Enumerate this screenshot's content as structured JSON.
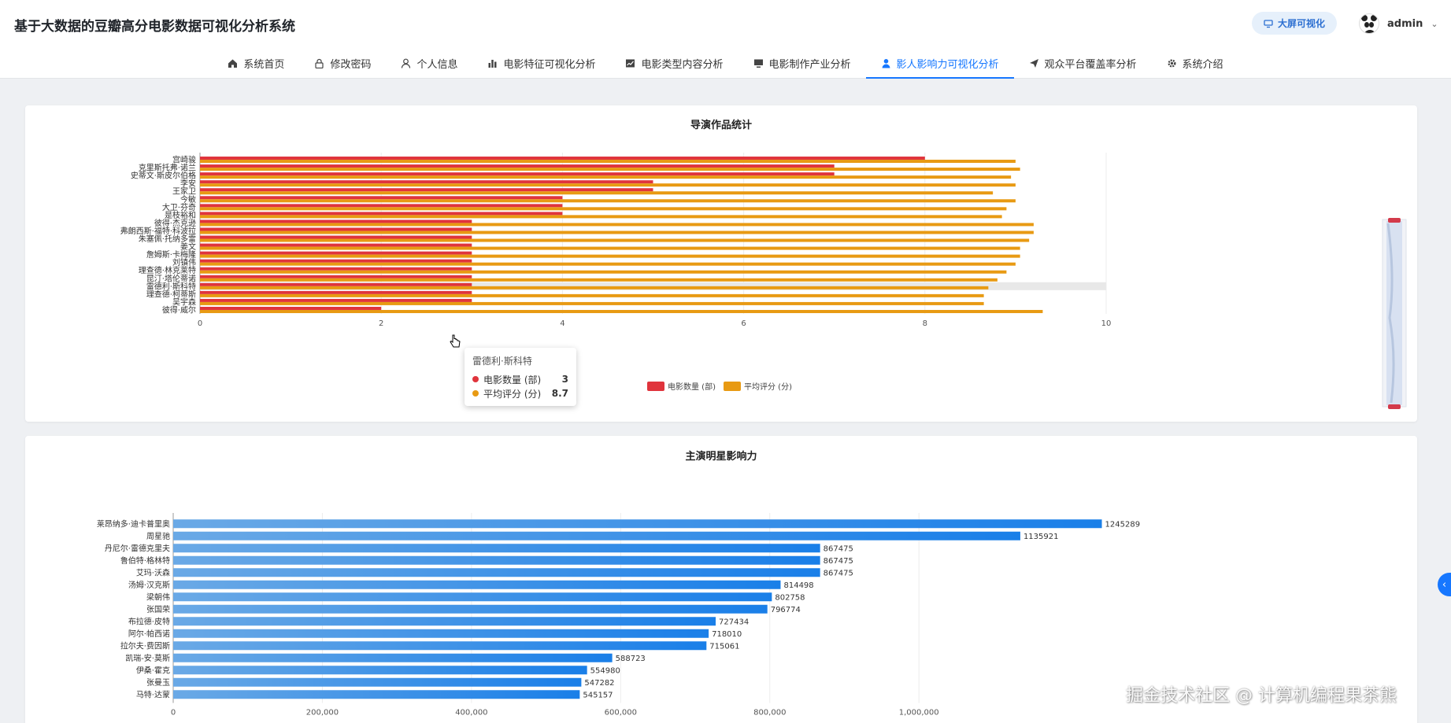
{
  "header": {
    "title": "基于大数据的豆瓣高分电影数据可视化分析系统",
    "bigscreen_label": "大屏可视化",
    "username": "admin"
  },
  "nav": {
    "items": [
      {
        "label": "系统首页",
        "icon": "home-icon"
      },
      {
        "label": "修改密码",
        "icon": "lock-icon"
      },
      {
        "label": "个人信息",
        "icon": "user-icon"
      },
      {
        "label": "电影特征可视化分析",
        "icon": "bar-chart-icon"
      },
      {
        "label": "电影类型内容分析",
        "icon": "line-chart-icon"
      },
      {
        "label": "电影制作产业分析",
        "icon": "monitor-icon"
      },
      {
        "label": "影人影响力可视化分析",
        "icon": "person-icon",
        "active": true
      },
      {
        "label": "观众平台覆盖率分析",
        "icon": "send-icon"
      },
      {
        "label": "系统介绍",
        "icon": "gear-icon"
      }
    ]
  },
  "colors": {
    "accent": "#1677ff",
    "director_count": "#e0343c",
    "director_rating": "#e89a13",
    "star_bar": "#1e88e5"
  },
  "chart_data": [
    {
      "type": "bar",
      "orientation": "horizontal",
      "title": "导演作品统计",
      "categories": [
        "宫崎骏",
        "克里斯托弗·诺兰",
        "史蒂文·斯皮尔伯格",
        "李安",
        "王家卫",
        "今敏",
        "大卫·芬奇",
        "是枝裕和",
        "彼得·杰克逊",
        "弗朗西斯·福特·科波拉",
        "朱塞佩·托纳多雷",
        "姜文",
        "詹姆斯·卡梅隆",
        "刘镇伟",
        "理查德·林克莱特",
        "昆汀·塔伦蒂诺",
        "雷德利·斯科特",
        "理查德·柯蒂斯",
        "吴宇森",
        "彼得·威尔"
      ],
      "series": [
        {
          "name": "电影数量 (部)",
          "values": [
            8,
            7,
            7,
            5,
            5,
            4,
            4,
            4,
            3,
            3,
            3,
            3,
            3,
            3,
            3,
            3,
            3,
            3,
            3,
            2
          ]
        },
        {
          "name": "平均评分 (分)",
          "values": [
            9.0,
            9.05,
            8.95,
            9.0,
            8.75,
            9.0,
            8.9,
            8.85,
            9.2,
            9.2,
            9.15,
            9.05,
            9.05,
            9.0,
            8.9,
            8.8,
            8.7,
            8.65,
            8.65,
            9.3
          ]
        }
      ],
      "x_ticks": [
        "0",
        "2",
        "4",
        "6",
        "8",
        "10"
      ],
      "xlim": [
        0,
        10
      ],
      "legend_position": "bottom-center",
      "highlight_category": "雷德利·斯科特",
      "tooltip": {
        "title": "雷德利·斯科特",
        "rows": [
          {
            "name": "电影数量 (部)",
            "value": "3"
          },
          {
            "name": "平均评分 (分)",
            "value": "8.7"
          }
        ]
      },
      "has_datazoom": true
    },
    {
      "type": "bar",
      "orientation": "horizontal",
      "title": "主演明星影响力",
      "categories": [
        "莱昂纳多·迪卡普里奥",
        "周星驰",
        "丹尼尔·雷德克里夫",
        "鲁伯特·格林特",
        "艾玛·沃森",
        "汤姆·汉克斯",
        "梁朝伟",
        "张国荣",
        "布拉德·皮特",
        "阿尔·帕西诺",
        "拉尔夫·费因斯",
        "凯瑞-安·莫斯",
        "伊桑·霍克",
        "张曼玉",
        "马特·达蒙"
      ],
      "values": [
        1245289,
        1135921,
        867475,
        867475,
        867475,
        814498,
        802758,
        796774,
        727434,
        718010,
        715061,
        588723,
        554980,
        547282,
        545157
      ],
      "value_labels": [
        "1245289",
        "1135921",
        "867475",
        "867475",
        "867475",
        "814498",
        "802758",
        "796774",
        "727434",
        "718010",
        "715061",
        "588723",
        "554980",
        "547282",
        "545157"
      ],
      "x_ticks": [
        "0",
        "200,000",
        "400,000",
        "600,000",
        "800,000",
        "1,000,000"
      ],
      "xlim": [
        0,
        1250000
      ]
    }
  ],
  "watermark": "掘金技术社区 @ 计算机编程果茶熊"
}
